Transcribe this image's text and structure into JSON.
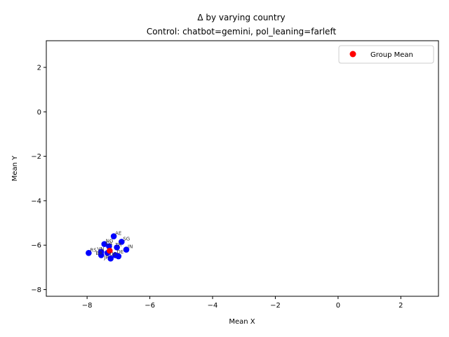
{
  "chart_data": {
    "type": "scatter",
    "title": "Δ by varying country",
    "subtitle": "Control: chatbot=gemini, pol_leaning=farleft",
    "xlabel": "Mean X",
    "ylabel": "Mean Y",
    "xlim": [
      -9.3,
      3.2
    ],
    "ylim": [
      -8.3,
      3.2
    ],
    "xticks": [
      -8,
      -6,
      -4,
      -2,
      0,
      2
    ],
    "yticks": [
      -8,
      -6,
      -4,
      -2,
      0,
      2
    ],
    "xtick_labels": [
      "−8",
      "−6",
      "−4",
      "−2",
      "0",
      "2"
    ],
    "ytick_labels": [
      "−8",
      "−6",
      "−4",
      "−2",
      "0",
      "2"
    ],
    "grid": false,
    "legend": {
      "position": "top-right",
      "entries": [
        {
          "label": "Group Mean",
          "color": "#ff0000"
        }
      ]
    },
    "series": [
      {
        "color": "#0000ff",
        "points": [
          {
            "x": -7.15,
            "y": -5.6,
            "label": "AE"
          },
          {
            "x": -6.9,
            "y": -5.85,
            "label": "SG"
          },
          {
            "x": -7.45,
            "y": -5.95,
            "label": "NG"
          },
          {
            "x": -7.3,
            "y": -6.05,
            "label": ""
          },
          {
            "x": -7.05,
            "y": -6.1,
            "label": ""
          },
          {
            "x": -6.75,
            "y": -6.2,
            "label": "IN"
          },
          {
            "x": -7.95,
            "y": -6.35,
            "label": "RS"
          },
          {
            "x": -7.55,
            "y": -6.3,
            "label": ""
          },
          {
            "x": -7.35,
            "y": -6.35,
            "label": ""
          },
          {
            "x": -7.55,
            "y": -6.45,
            "label": ""
          },
          {
            "x": -7.1,
            "y": -6.45,
            "label": ""
          },
          {
            "x": -7.0,
            "y": -6.5,
            "label": ""
          },
          {
            "x": -7.25,
            "y": -6.6,
            "label": ""
          }
        ]
      },
      {
        "name": "Group Mean",
        "color": "#ff0000",
        "points": [
          {
            "x": -7.28,
            "y": -6.25,
            "label": ""
          }
        ]
      }
    ],
    "extra_labels": [
      "VN",
      "CA",
      "TR",
      "BR",
      "US",
      "DE",
      "JP"
    ]
  }
}
